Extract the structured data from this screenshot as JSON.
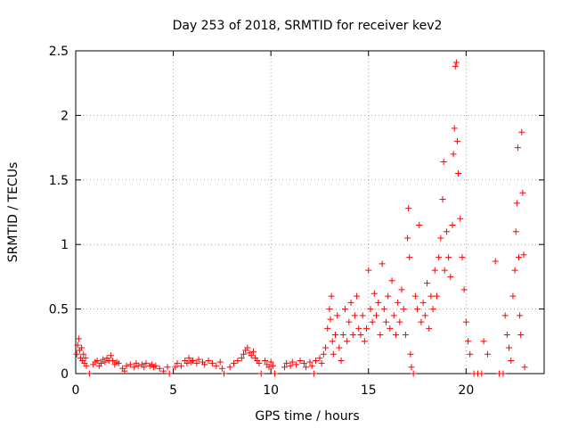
{
  "chart_data": {
    "type": "scatter",
    "title": "Day 253 of 2018, SRMTID for receiver kev2",
    "xlabel": "GPS time / hours",
    "ylabel": "SRMTID / TECUs",
    "xlim": [
      0,
      24
    ],
    "ylim": [
      0,
      2.5
    ],
    "grid": true,
    "marker": "+",
    "color": "#ff0000",
    "x_ticks": [
      0,
      5,
      10,
      15,
      20
    ],
    "x_tick_labels": [
      "0",
      "5",
      "10",
      "15",
      "20"
    ],
    "y_ticks": [
      0,
      0.5,
      1,
      1.5,
      2,
      2.5
    ],
    "y_tick_labels": [
      "0",
      "0.5",
      "1",
      "1.5",
      "2",
      "2.5"
    ],
    "series": [
      {
        "name": "kev2",
        "points": [
          [
            0.05,
            0.15
          ],
          [
            0.1,
            0.22
          ],
          [
            0.15,
            0.27
          ],
          [
            0.2,
            0.18
          ],
          [
            0.25,
            0.12
          ],
          [
            0.3,
            0.2
          ],
          [
            0.35,
            0.1
          ],
          [
            0.4,
            0.15
          ],
          [
            0.45,
            0.08
          ],
          [
            0.5,
            0.12
          ],
          [
            0.55,
            0.06
          ],
          [
            0.7,
            0.0
          ],
          [
            0.9,
            0.07
          ],
          [
            1.0,
            0.09
          ],
          [
            1.1,
            0.1
          ],
          [
            1.2,
            0.06
          ],
          [
            1.3,
            0.08
          ],
          [
            1.4,
            0.11
          ],
          [
            1.5,
            0.09
          ],
          [
            1.6,
            0.12
          ],
          [
            1.7,
            0.1
          ],
          [
            1.8,
            0.14
          ],
          [
            1.9,
            0.1
          ],
          [
            2.0,
            0.07
          ],
          [
            2.1,
            0.09
          ],
          [
            2.2,
            0.08
          ],
          [
            2.4,
            0.04
          ],
          [
            2.5,
            0.02
          ],
          [
            2.6,
            0.06
          ],
          [
            2.8,
            0.07
          ],
          [
            3.0,
            0.05
          ],
          [
            3.1,
            0.08
          ],
          [
            3.2,
            0.06
          ],
          [
            3.4,
            0.07
          ],
          [
            3.5,
            0.05
          ],
          [
            3.6,
            0.08
          ],
          [
            3.8,
            0.06
          ],
          [
            3.9,
            0.07
          ],
          [
            4.0,
            0.05
          ],
          [
            4.1,
            0.06
          ],
          [
            4.3,
            0.04
          ],
          [
            4.5,
            0.02
          ],
          [
            4.7,
            0.05
          ],
          [
            4.8,
            0.0
          ],
          [
            5.1,
            0.05
          ],
          [
            5.2,
            0.08
          ],
          [
            5.4,
            0.06
          ],
          [
            5.6,
            0.1
          ],
          [
            5.7,
            0.08
          ],
          [
            5.8,
            0.12
          ],
          [
            5.9,
            0.09
          ],
          [
            6.0,
            0.1
          ],
          [
            6.2,
            0.08
          ],
          [
            6.3,
            0.11
          ],
          [
            6.5,
            0.09
          ],
          [
            6.6,
            0.07
          ],
          [
            6.8,
            0.1
          ],
          [
            7.0,
            0.08
          ],
          [
            7.2,
            0.06
          ],
          [
            7.4,
            0.09
          ],
          [
            7.5,
            0.04
          ],
          [
            7.6,
            0.0
          ],
          [
            7.9,
            0.05
          ],
          [
            8.1,
            0.08
          ],
          [
            8.3,
            0.1
          ],
          [
            8.5,
            0.12
          ],
          [
            8.6,
            0.15
          ],
          [
            8.7,
            0.18
          ],
          [
            8.8,
            0.2
          ],
          [
            8.9,
            0.16
          ],
          [
            9.0,
            0.14
          ],
          [
            9.1,
            0.17
          ],
          [
            9.2,
            0.12
          ],
          [
            9.3,
            0.1
          ],
          [
            9.4,
            0.08
          ],
          [
            9.5,
            0.0
          ],
          [
            9.7,
            0.1
          ],
          [
            9.8,
            0.07
          ],
          [
            9.9,
            0.05
          ],
          [
            10.0,
            0.09
          ],
          [
            10.1,
            0.06
          ],
          [
            10.2,
            0.0
          ],
          [
            10.7,
            0.05
          ],
          [
            10.8,
            0.08
          ],
          [
            11.0,
            0.06
          ],
          [
            11.1,
            0.09
          ],
          [
            11.3,
            0.07
          ],
          [
            11.5,
            0.1
          ],
          [
            11.7,
            0.08
          ],
          [
            11.8,
            0.05
          ],
          [
            12.0,
            0.09
          ],
          [
            12.1,
            0.06
          ],
          [
            12.2,
            0.0
          ],
          [
            12.3,
            0.1
          ],
          [
            12.5,
            0.12
          ],
          [
            12.6,
            0.08
          ],
          [
            12.7,
            0.15
          ],
          [
            12.8,
            0.2
          ],
          [
            12.9,
            0.35
          ],
          [
            13.0,
            0.5
          ],
          [
            13.05,
            0.42
          ],
          [
            13.1,
            0.6
          ],
          [
            13.15,
            0.25
          ],
          [
            13.2,
            0.15
          ],
          [
            13.3,
            0.3
          ],
          [
            13.4,
            0.45
          ],
          [
            13.5,
            0.2
          ],
          [
            13.6,
            0.1
          ],
          [
            13.7,
            0.3
          ],
          [
            13.8,
            0.5
          ],
          [
            13.9,
            0.25
          ],
          [
            14.0,
            0.4
          ],
          [
            14.1,
            0.55
          ],
          [
            14.2,
            0.3
          ],
          [
            14.3,
            0.45
          ],
          [
            14.4,
            0.6
          ],
          [
            14.5,
            0.35
          ],
          [
            14.6,
            0.3
          ],
          [
            14.7,
            0.45
          ],
          [
            14.8,
            0.25
          ],
          [
            14.9,
            0.35
          ],
          [
            15.0,
            0.8
          ],
          [
            15.1,
            0.5
          ],
          [
            15.2,
            0.4
          ],
          [
            15.3,
            0.62
          ],
          [
            15.4,
            0.45
          ],
          [
            15.5,
            0.55
          ],
          [
            15.6,
            0.3
          ],
          [
            15.7,
            0.85
          ],
          [
            15.8,
            0.5
          ],
          [
            15.9,
            0.4
          ],
          [
            16.0,
            0.6
          ],
          [
            16.1,
            0.35
          ],
          [
            16.2,
            0.72
          ],
          [
            16.3,
            0.45
          ],
          [
            16.4,
            0.3
          ],
          [
            16.5,
            0.55
          ],
          [
            16.6,
            0.4
          ],
          [
            16.7,
            0.65
          ],
          [
            16.8,
            0.5
          ],
          [
            16.9,
            0.3
          ],
          [
            17.0,
            1.05
          ],
          [
            17.05,
            1.28
          ],
          [
            17.1,
            0.9
          ],
          [
            17.15,
            0.15
          ],
          [
            17.2,
            0.05
          ],
          [
            17.3,
            0.0
          ],
          [
            17.4,
            0.6
          ],
          [
            17.5,
            0.5
          ],
          [
            17.6,
            1.15
          ],
          [
            17.7,
            0.4
          ],
          [
            17.8,
            0.55
          ],
          [
            17.9,
            0.45
          ],
          [
            18.0,
            0.7
          ],
          [
            18.1,
            0.35
          ],
          [
            18.2,
            0.6
          ],
          [
            18.3,
            0.5
          ],
          [
            18.4,
            0.8
          ],
          [
            18.5,
            0.6
          ],
          [
            18.6,
            0.9
          ],
          [
            18.7,
            1.05
          ],
          [
            18.8,
            1.35
          ],
          [
            18.85,
            1.64
          ],
          [
            18.9,
            0.8
          ],
          [
            19.0,
            1.1
          ],
          [
            19.1,
            0.9
          ],
          [
            19.2,
            0.75
          ],
          [
            19.3,
            1.15
          ],
          [
            19.35,
            1.7
          ],
          [
            19.4,
            1.9
          ],
          [
            19.45,
            2.38
          ],
          [
            19.5,
            2.41
          ],
          [
            19.55,
            1.8
          ],
          [
            19.6,
            1.55
          ],
          [
            19.7,
            1.2
          ],
          [
            19.8,
            0.9
          ],
          [
            19.9,
            0.65
          ],
          [
            20.0,
            0.4
          ],
          [
            20.1,
            0.25
          ],
          [
            20.2,
            0.15
          ],
          [
            20.4,
            0.0
          ],
          [
            20.6,
            0.0
          ],
          [
            20.8,
            0.0
          ],
          [
            20.9,
            0.25
          ],
          [
            21.1,
            0.15
          ],
          [
            21.5,
            0.87
          ],
          [
            21.7,
            0.0
          ],
          [
            21.9,
            0.0
          ],
          [
            22.0,
            0.45
          ],
          [
            22.1,
            0.3
          ],
          [
            22.2,
            0.2
          ],
          [
            22.3,
            0.1
          ],
          [
            22.4,
            0.6
          ],
          [
            22.5,
            0.8
          ],
          [
            22.55,
            1.1
          ],
          [
            22.6,
            1.32
          ],
          [
            22.65,
            1.75
          ],
          [
            22.7,
            0.9
          ],
          [
            22.75,
            0.45
          ],
          [
            22.8,
            0.3
          ],
          [
            22.85,
            1.87
          ],
          [
            22.9,
            1.4
          ],
          [
            22.95,
            0.92
          ],
          [
            23.0,
            0.05
          ]
        ]
      }
    ]
  }
}
